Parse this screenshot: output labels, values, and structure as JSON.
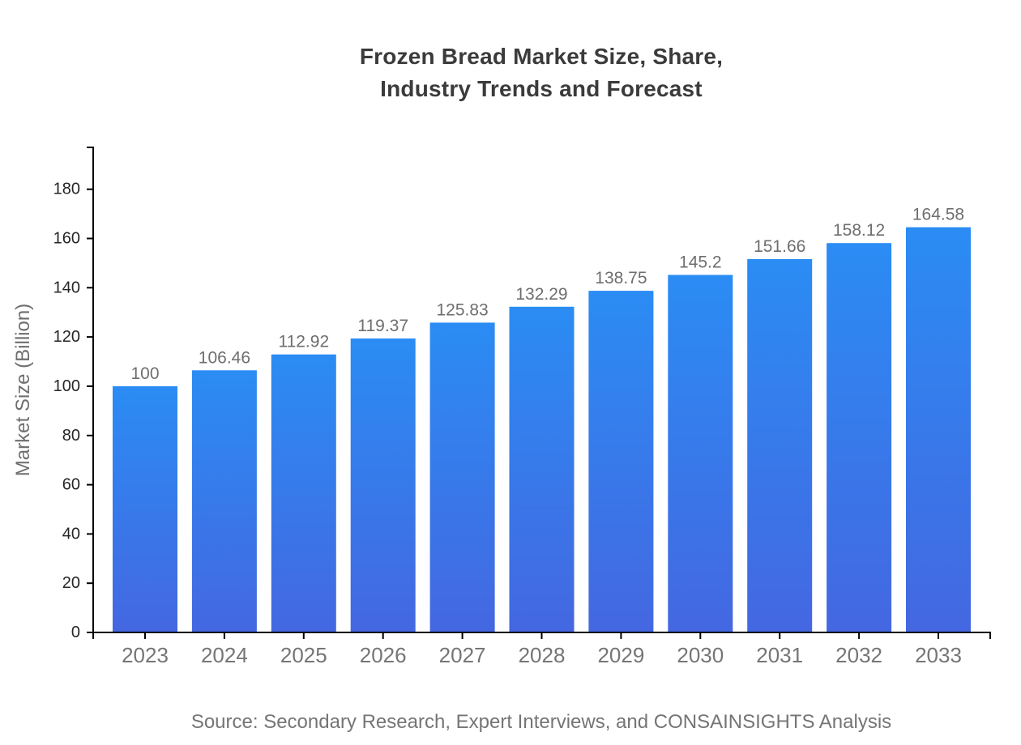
{
  "title": {
    "line1": "Frozen Bread Market Size, Share,",
    "line2": "Industry Trends and Forecast"
  },
  "source": "Source: Secondary Research, Expert Interviews, and CONSAINSIGHTS Analysis",
  "chart_data": {
    "type": "bar",
    "title": "Frozen Bread Market Size, Share, Industry Trends and Forecast",
    "categories": [
      "2023",
      "2024",
      "2025",
      "2026",
      "2027",
      "2028",
      "2029",
      "2030",
      "2031",
      "2032",
      "2033"
    ],
    "values": [
      100,
      106.46,
      112.92,
      119.37,
      125.83,
      132.29,
      138.75,
      145.2,
      151.66,
      158.12,
      164.58
    ],
    "value_labels": [
      "100",
      "106.46",
      "112.92",
      "119.37",
      "125.83",
      "132.29",
      "138.75",
      "145.2",
      "151.66",
      "158.12",
      "164.58"
    ],
    "xlabel": "",
    "ylabel": "Market Size (Billion)",
    "ylim": [
      0,
      197
    ],
    "yticks": [
      0,
      20,
      40,
      60,
      80,
      100,
      120,
      140,
      160,
      180
    ],
    "grid": false,
    "legend": null,
    "colors": {
      "bar_top": "#2b8cf4",
      "bar_bottom": "#4467e1",
      "axis": "#000000",
      "y_tick_label": "#262626",
      "x_tick_label": "#757575",
      "value_label": "#6e6e6e",
      "ylabel": "#6e6e6e",
      "title": "#3b3b3b",
      "source": "#757575"
    }
  }
}
